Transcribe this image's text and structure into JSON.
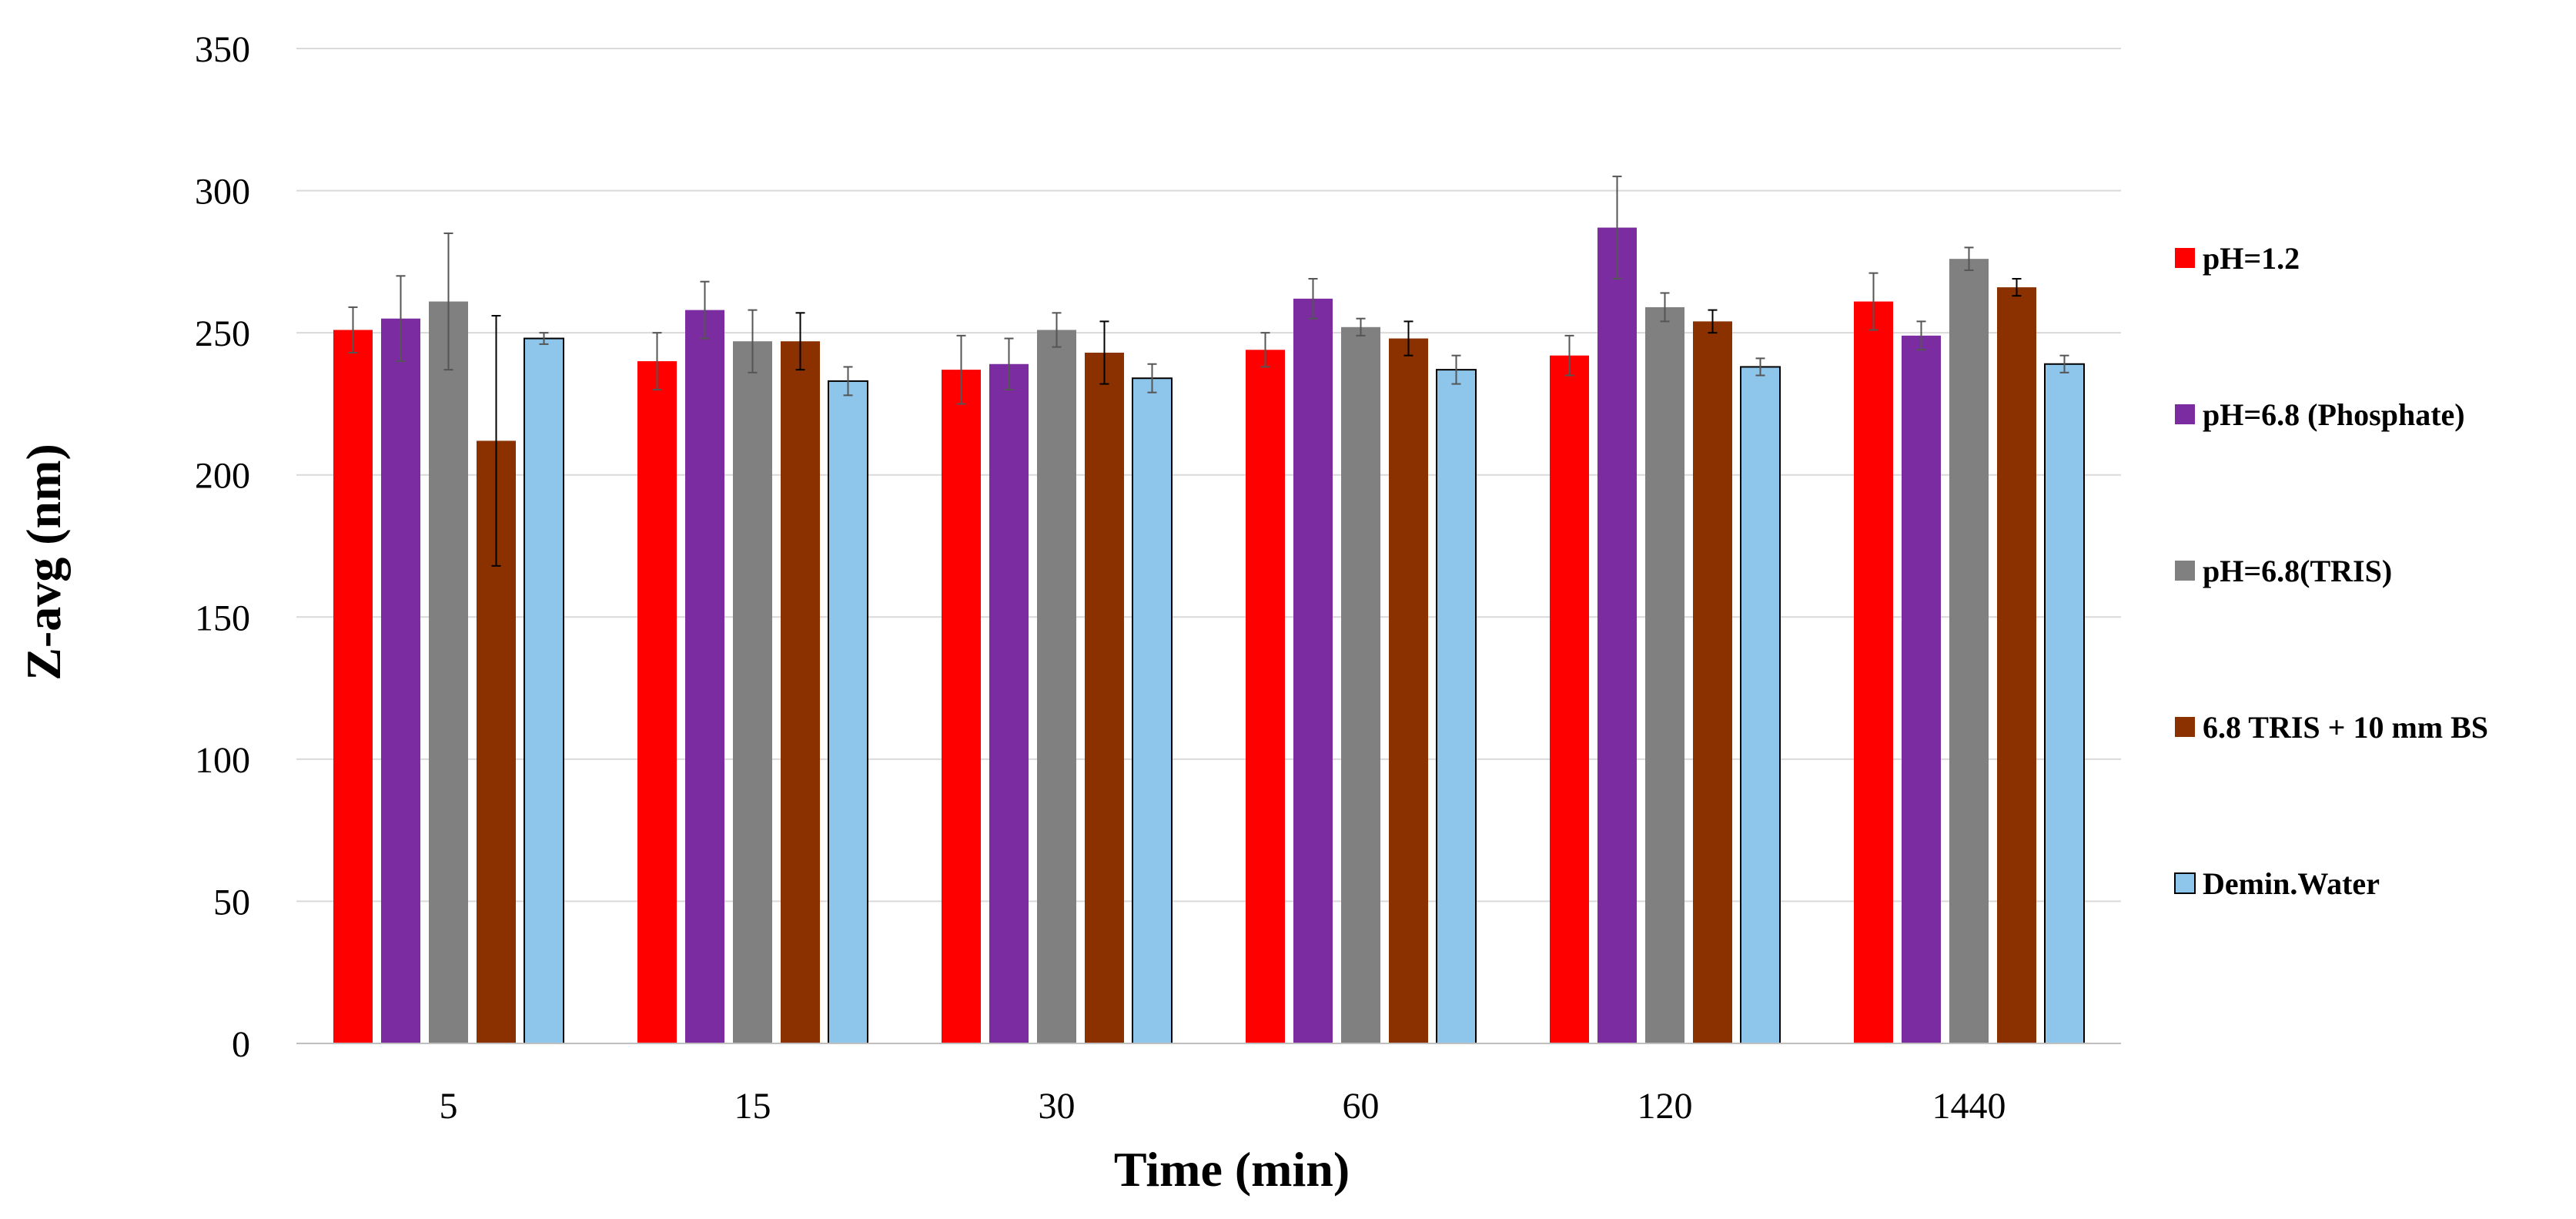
{
  "chart_data": {
    "type": "bar",
    "title": "",
    "xlabel": "Time (min)",
    "ylabel": "Z-avg (nm)",
    "categories": [
      "5",
      "15",
      "30",
      "60",
      "120",
      "1440"
    ],
    "ylim": [
      0,
      350
    ],
    "yticks": [
      0,
      50,
      100,
      150,
      200,
      250,
      300,
      350
    ],
    "yticks_labels": [
      "0",
      "50",
      "100",
      "150",
      "200",
      "250",
      "300",
      "350"
    ],
    "grid": true,
    "legend_position": "right",
    "series": [
      {
        "name": "pH=1.2",
        "color": "#FF0000",
        "values": [
          251,
          240,
          237,
          244,
          242,
          261
        ],
        "errors": [
          8,
          10,
          12,
          6,
          7,
          10
        ]
      },
      {
        "name": "pH=6.8 (Phosphate)",
        "color": "#7B2CA1",
        "values": [
          255,
          258,
          239,
          262,
          287,
          249
        ],
        "errors": [
          15,
          10,
          9,
          7,
          18,
          5
        ]
      },
      {
        "name": "pH=6.8(TRIS)",
        "color": "#808080",
        "values": [
          261,
          247,
          251,
          252,
          259,
          276
        ],
        "errors": [
          24,
          11,
          6,
          3,
          5,
          4
        ]
      },
      {
        "name": "6.8 TRIS + 10 mm BS",
        "color": "#8B3100",
        "values": [
          212,
          247,
          243,
          248,
          254,
          266
        ],
        "errors": [
          44,
          10,
          11,
          6,
          4,
          3
        ]
      },
      {
        "name": "Demin.Water",
        "color": "#8EC5EA",
        "values": [
          248,
          233,
          234,
          237,
          238,
          239
        ],
        "errors": [
          2,
          5,
          5,
          5,
          3,
          3
        ]
      }
    ]
  }
}
